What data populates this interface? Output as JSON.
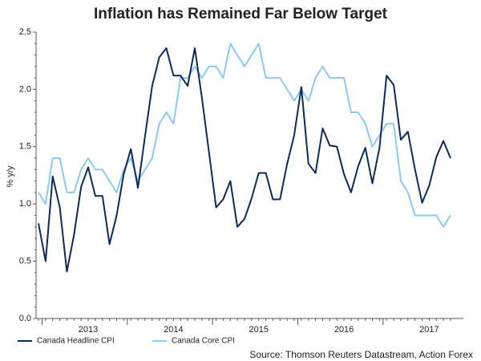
{
  "chart_data": {
    "type": "line",
    "title": "Inflation has Remained Far Below Target",
    "y_label": "% y/y",
    "source": "Source: Thomson Reuters Datastream, Action Forex",
    "categories": [
      null,
      null,
      null,
      null,
      null,
      null,
      null,
      "2013",
      null,
      null,
      null,
      null,
      null,
      null,
      null,
      null,
      null,
      null,
      null,
      "2014",
      null,
      null,
      null,
      null,
      null,
      null,
      null,
      null,
      null,
      null,
      null,
      "2015",
      null,
      null,
      null,
      null,
      null,
      null,
      null,
      null,
      null,
      null,
      null,
      "2016",
      null,
      null,
      null,
      null,
      null,
      null,
      null,
      null,
      null,
      null,
      null,
      "2017",
      null,
      null,
      null
    ],
    "series": [
      {
        "name": "Canada Headline CPI",
        "color": "#0d2b55",
        "values": [
          0.83,
          0.5,
          1.24,
          0.97,
          0.41,
          0.73,
          1.15,
          1.32,
          1.07,
          1.07,
          0.65,
          0.9,
          1.26,
          1.48,
          1.14,
          1.59,
          2.03,
          2.28,
          2.36,
          2.12,
          2.12,
          2.03,
          2.36,
          1.93,
          1.45,
          0.97,
          1.04,
          1.2,
          0.8,
          0.87,
          1.05,
          1.27,
          1.27,
          1.04,
          1.04,
          1.35,
          1.6,
          2.02,
          1.35,
          1.27,
          1.66,
          1.51,
          1.5,
          1.26,
          1.1,
          1.33,
          1.49,
          1.18,
          1.49,
          2.12,
          2.04,
          1.56,
          1.63,
          1.3,
          1.01,
          1.16,
          1.41,
          1.55,
          1.4
        ]
      },
      {
        "name": "Canada Core CPI",
        "color": "#8ec9f0",
        "values": [
          1.1,
          1.0,
          1.4,
          1.4,
          1.1,
          1.1,
          1.3,
          1.4,
          1.3,
          1.3,
          1.2,
          1.1,
          1.3,
          1.4,
          1.2,
          1.3,
          1.4,
          1.7,
          1.8,
          1.7,
          2.1,
          2.1,
          2.2,
          2.1,
          2.2,
          2.2,
          2.1,
          2.4,
          2.3,
          2.2,
          2.3,
          2.4,
          2.1,
          2.1,
          2.1,
          2.0,
          1.9,
          2.0,
          1.9,
          2.1,
          2.2,
          2.1,
          2.1,
          2.1,
          1.8,
          1.8,
          1.7,
          1.5,
          1.6,
          1.7,
          1.7,
          1.2,
          1.1,
          0.9,
          0.9,
          0.9,
          0.9,
          0.8,
          0.9
        ]
      }
    ],
    "ylim": [
      0,
      2.5
    ],
    "yticks": [
      {
        "value": 0,
        "label": "0.0"
      },
      0.5,
      {
        "value": 1,
        "label": "1.0"
      },
      1.5,
      {
        "value": 2,
        "label": "2.0"
      },
      2.5
    ],
    "grid": false,
    "legend": "bottom-left"
  }
}
